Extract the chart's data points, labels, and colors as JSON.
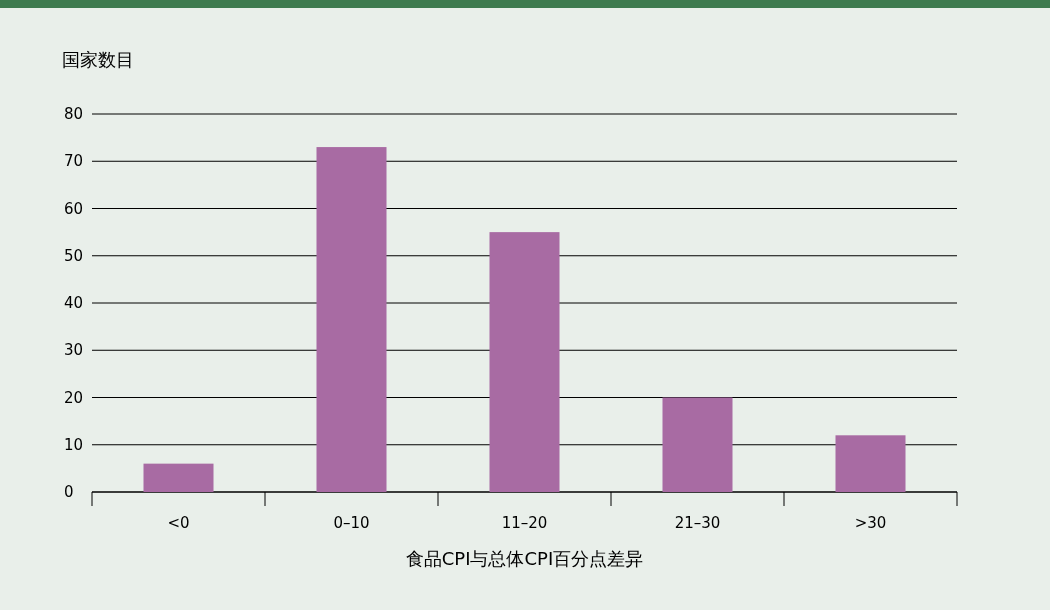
{
  "chart_data": {
    "type": "bar",
    "ylabel": "国家数目",
    "xlabel": "食品CPI与总体CPI百分点差异",
    "categories": [
      "<0",
      "0–10",
      "11–20",
      "21–30",
      ">30"
    ],
    "values": [
      6,
      73,
      55,
      20,
      12
    ],
    "color": "#a86ba3",
    "ylim": [
      0,
      80
    ],
    "yticks": [
      0,
      10,
      20,
      30,
      40,
      50,
      60,
      70,
      80
    ],
    "grid": "y"
  }
}
